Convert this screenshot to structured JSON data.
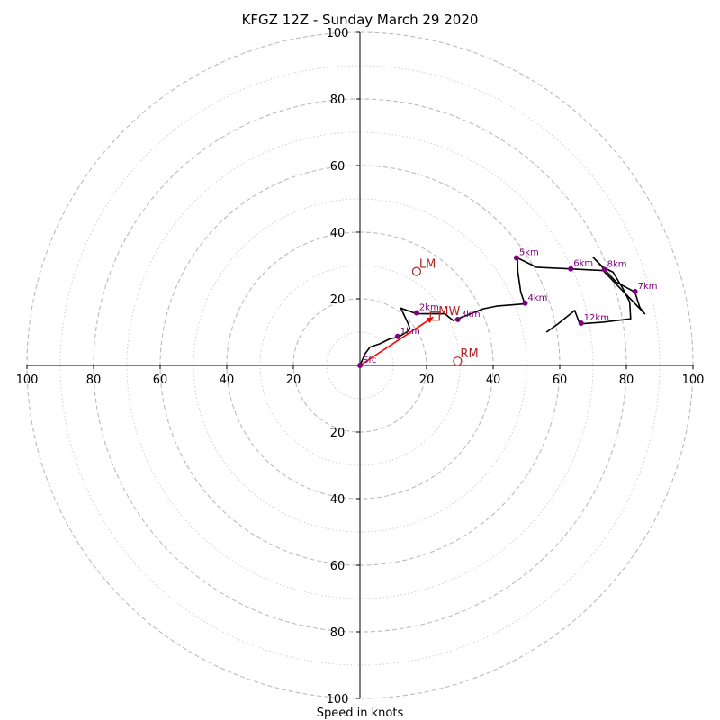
{
  "chart_data": {
    "type": "hodograph",
    "title": "KFGZ 12Z - Sunday March 29 2020",
    "xlabel": "Speed in knots",
    "xlim": [
      -100,
      100
    ],
    "ylim": [
      -100,
      100
    ],
    "major_rings": [
      20,
      40,
      60,
      80,
      100
    ],
    "minor_rings": [
      10,
      30,
      50,
      70,
      90
    ],
    "tick_labels": {
      "left": [
        "100",
        "80",
        "60",
        "40",
        "20"
      ],
      "right": [
        "20",
        "40",
        "60",
        "80",
        "100"
      ],
      "up": [
        "20",
        "40",
        "60",
        "80",
        "100"
      ],
      "down": [
        "20",
        "40",
        "60",
        "80",
        "100"
      ]
    },
    "hodograph": {
      "color": "#000000",
      "points": [
        [
          0,
          0
        ],
        [
          1.5,
          3.5
        ],
        [
          3,
          5.5
        ],
        [
          6,
          6.5
        ],
        [
          9,
          8
        ],
        [
          11.5,
          8.5
        ],
        [
          14,
          10
        ],
        [
          15,
          11
        ],
        [
          14.5,
          12.5
        ],
        [
          12.3,
          17.2
        ],
        [
          17,
          15.5
        ],
        [
          20,
          15.5
        ],
        [
          24,
          15.5
        ],
        [
          25.5,
          15.5
        ],
        [
          28,
          13.5
        ],
        [
          32,
          15
        ],
        [
          37,
          17
        ],
        [
          41,
          17.8
        ],
        [
          49.5,
          18.5
        ],
        [
          48.3,
          22
        ],
        [
          47.4,
          28.2
        ],
        [
          47.3,
          32.3
        ],
        [
          53,
          29.5
        ],
        [
          63,
          29
        ],
        [
          73,
          28.5
        ],
        [
          85.5,
          15.5
        ],
        [
          84,
          17.5
        ],
        [
          82.6,
          22
        ],
        [
          77,
          25
        ],
        [
          70,
          32.5
        ],
        [
          73,
          29.5
        ],
        [
          76,
          28
        ],
        [
          79,
          23
        ],
        [
          81,
          19
        ],
        [
          81.3,
          14
        ],
        [
          73,
          13
        ],
        [
          66,
          12.5
        ],
        [
          64.5,
          16.5
        ],
        [
          59.5,
          12.5
        ],
        [
          56,
          10
        ]
      ]
    },
    "height_markers": [
      {
        "label": "Sfc",
        "u": 0,
        "v": 0
      },
      {
        "label": "1km",
        "u": 11.3,
        "v": 8.7
      },
      {
        "label": "2km",
        "u": 17,
        "v": 15.8
      },
      {
        "label": "3km",
        "u": 29.4,
        "v": 13.8
      },
      {
        "label": "4km",
        "u": 49.6,
        "v": 18.7
      },
      {
        "label": "5km",
        "u": 47,
        "v": 32.3
      },
      {
        "label": "6km",
        "u": 63.3,
        "v": 29
      },
      {
        "label": "7km",
        "u": 82.6,
        "v": 22.2
      },
      {
        "label": "8km",
        "u": 73.4,
        "v": 28.8
      },
      {
        "label": "12km",
        "u": 66.4,
        "v": 12.7
      }
    ],
    "marker_color": "#800080",
    "storm_motion": {
      "color": "#b22222",
      "LM": {
        "label": "LM",
        "u": 17,
        "v": 28.2
      },
      "RM": {
        "label": "RM",
        "u": 29.3,
        "v": 1.3
      },
      "MW": {
        "label": "MW",
        "u": 22.5,
        "v": 14.8
      }
    },
    "shear_vector": {
      "color": "#ff0000",
      "from": [
        0,
        0
      ],
      "to": [
        22,
        14.5
      ]
    }
  }
}
